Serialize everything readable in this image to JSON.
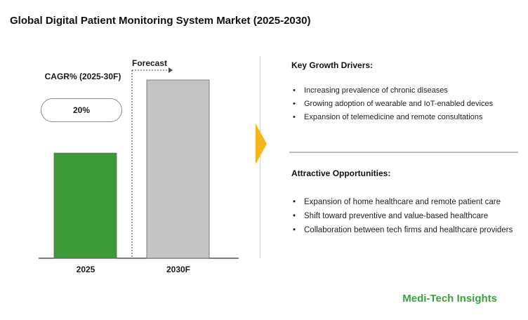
{
  "title": "Global Digital Patient Monitoring System Market (2025-2030)",
  "chart_data": {
    "type": "bar",
    "categories": [
      "2025",
      "2030F"
    ],
    "values": [
      0.59,
      1.0
    ],
    "value_note": "relative bar heights, no axis shown",
    "colors": [
      "#3a9a35",
      "#c4c4c4"
    ],
    "cagr_label": "CAGR% (2025-30F)",
    "cagr_value": "20%",
    "forecast_label": "Forecast",
    "ylim": [
      0,
      1
    ]
  },
  "drivers": {
    "title": "Key Growth Drivers:",
    "bullet": "•",
    "items": [
      "Increasing prevalence of chronic diseases",
      "Growing adoption of wearable and IoT-enabled devices",
      "Expansion of telemedicine and remote consultations"
    ]
  },
  "opportunities": {
    "title": "Attractive Opportunities:",
    "bullet": "•",
    "items": [
      "Expansion of home healthcare and remote patient care",
      "Shift toward preventive and value-based healthcare",
      "Collaboration between tech firms and healthcare providers"
    ]
  },
  "brand": "Medi-Tech Insights",
  "accent_color": "#f3b71b"
}
